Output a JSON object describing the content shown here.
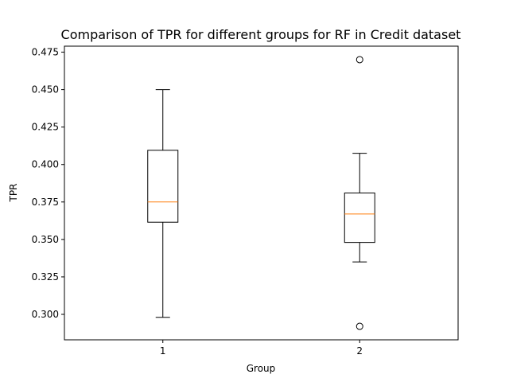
{
  "chart_data": {
    "type": "box",
    "title": "Comparison of TPR for different groups for RF in Credit dataset",
    "xlabel": "Group",
    "ylabel": "TPR",
    "categories": [
      "1",
      "2"
    ],
    "ylim": [
      0.283,
      0.479
    ],
    "yticks": [
      "0.300",
      "0.325",
      "0.350",
      "0.375",
      "0.400",
      "0.425",
      "0.450",
      "0.475"
    ],
    "grid": false,
    "boxes": [
      {
        "category": "1",
        "whisker_low": 0.298,
        "q1": 0.3615,
        "median": 0.375,
        "q3": 0.4095,
        "whisker_high": 0.45,
        "outliers": []
      },
      {
        "category": "2",
        "whisker_low": 0.335,
        "q1": 0.348,
        "median": 0.367,
        "q3": 0.381,
        "whisker_high": 0.4075,
        "outliers": [
          0.47,
          0.292
        ]
      }
    ],
    "colors": {
      "box": "#000000",
      "median": "#ff7f0e",
      "background": "#ffffff"
    }
  }
}
